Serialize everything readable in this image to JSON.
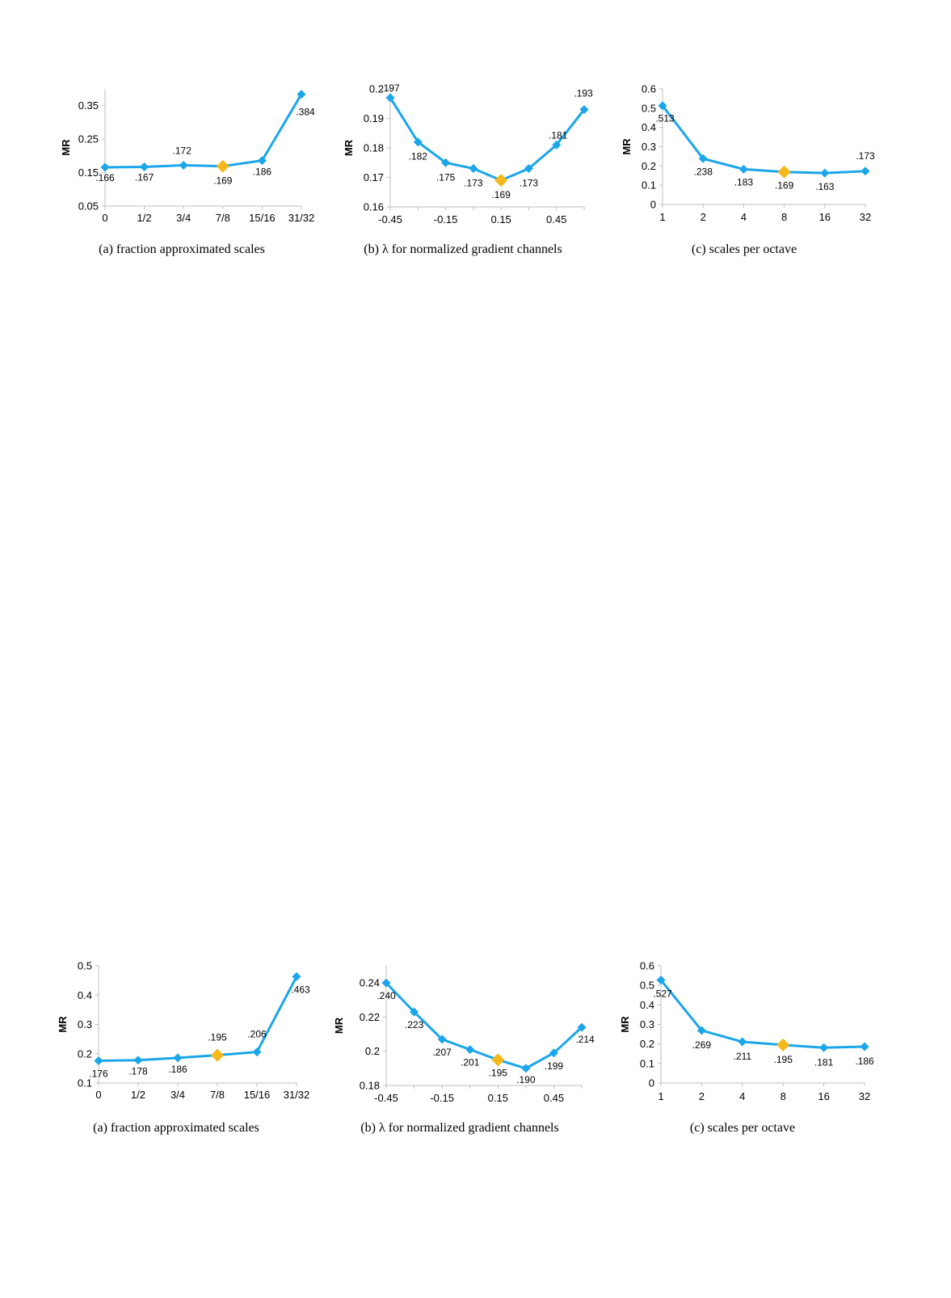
{
  "style": {
    "line_color": "#1aa6e8",
    "highlight_color": "#f6b81a"
  },
  "chart_data": [
    {
      "type": "line",
      "panel": "top-a",
      "categories": [
        "0",
        "1/2",
        "3/4",
        "7/8",
        "15/16",
        "31/32"
      ],
      "values": [
        0.166,
        0.167,
        0.172,
        0.169,
        0.186,
        0.384
      ],
      "data_labels": [
        ".166",
        ".167",
        ".172",
        ".169",
        ".186",
        ".384"
      ],
      "highlight_index": 3,
      "ylim": [
        0.05,
        0.4
      ],
      "yticks": [
        0.05,
        0.15,
        0.25,
        0.35
      ],
      "ytick_labels": [
        "0.05",
        "0.15",
        "0.25",
        "0.35"
      ],
      "ylabel": "MR",
      "caption": "(a) fraction approximated scales"
    },
    {
      "type": "line",
      "panel": "top-b",
      "x": [
        -0.45,
        -0.3,
        -0.15,
        0,
        0.15,
        0.3,
        0.45,
        0.6
      ],
      "values": [
        0.197,
        0.182,
        0.175,
        0.173,
        0.169,
        0.173,
        0.181,
        0.193
      ],
      "data_labels": [
        ".197",
        ".182",
        ".175",
        ".173",
        ".169",
        ".173",
        ".181",
        ".193"
      ],
      "highlight_index": 4,
      "xticks": [
        -0.45,
        -0.15,
        0.15,
        0.45
      ],
      "xtick_labels": [
        "-0.45",
        "-0.15",
        "0.15",
        "0.45"
      ],
      "xlim": [
        -0.45,
        0.6
      ],
      "ylim": [
        0.16,
        0.2
      ],
      "yticks": [
        0.16,
        0.17,
        0.18,
        0.19,
        0.2
      ],
      "ytick_labels": [
        "0.16",
        "0.17",
        "0.18",
        "0.19",
        "0.2"
      ],
      "ylabel": "MR",
      "caption": "(b) λ for normalized gradient channels"
    },
    {
      "type": "line",
      "panel": "top-c",
      "categories": [
        "1",
        "2",
        "4",
        "8",
        "16",
        "32"
      ],
      "values": [
        0.513,
        0.238,
        0.183,
        0.169,
        0.163,
        0.173
      ],
      "data_labels": [
        ".513",
        ".238",
        ".183",
        ".169",
        ".163",
        ".173"
      ],
      "highlight_index": 3,
      "ylim": [
        0,
        0.6
      ],
      "yticks": [
        0,
        0.1,
        0.2,
        0.3,
        0.4,
        0.5,
        0.6
      ],
      "ytick_labels": [
        "0",
        "0.1",
        "0.2",
        "0.3",
        "0.4",
        "0.5",
        "0.6"
      ],
      "ylabel": "MR",
      "caption": "(c) scales per octave"
    },
    {
      "type": "line",
      "panel": "bottom-a",
      "categories": [
        "0",
        "1/2",
        "3/4",
        "7/8",
        "15/16",
        "31/32"
      ],
      "values": [
        0.176,
        0.178,
        0.186,
        0.195,
        0.206,
        0.463
      ],
      "data_labels": [
        ".176",
        ".178",
        ".186",
        ".195",
        ".206",
        ".463"
      ],
      "highlight_index": 3,
      "ylim": [
        0.1,
        0.5
      ],
      "yticks": [
        0.1,
        0.2,
        0.3,
        0.4,
        0.5
      ],
      "ytick_labels": [
        "0.1",
        "0.2",
        "0.3",
        "0.4",
        "0.5"
      ],
      "ylabel": "MR",
      "caption": "(a) fraction approximated scales"
    },
    {
      "type": "line",
      "panel": "bottom-b",
      "x": [
        -0.45,
        -0.3,
        -0.15,
        0,
        0.15,
        0.3,
        0.45,
        0.6
      ],
      "values": [
        0.24,
        0.223,
        0.207,
        0.201,
        0.195,
        0.19,
        0.199,
        0.214
      ],
      "data_labels": [
        ".240",
        ".223",
        ".207",
        ".201",
        ".195",
        ".190",
        ".199",
        ".214"
      ],
      "highlight_index": 4,
      "xticks": [
        -0.45,
        -0.15,
        0.15,
        0.45
      ],
      "xtick_labels": [
        "-0.45",
        "-0.15",
        "0.15",
        "0.45"
      ],
      "xlim": [
        -0.45,
        0.6
      ],
      "ylim": [
        0.18,
        0.25
      ],
      "yticks": [
        0.18,
        0.2,
        0.22,
        0.24
      ],
      "ytick_labels": [
        "0.18",
        "0.2",
        "0.22",
        "0.24"
      ],
      "ylabel": "MR",
      "caption": "(b) λ for normalized gradient channels"
    },
    {
      "type": "line",
      "panel": "bottom-c",
      "categories": [
        "1",
        "2",
        "4",
        "8",
        "16",
        "32"
      ],
      "values": [
        0.527,
        0.269,
        0.211,
        0.195,
        0.181,
        0.186
      ],
      "data_labels": [
        ".527",
        ".269",
        ".211",
        ".195",
        ".181",
        ".186"
      ],
      "highlight_index": 3,
      "ylim": [
        0,
        0.6
      ],
      "yticks": [
        0,
        0.1,
        0.2,
        0.3,
        0.4,
        0.5,
        0.6
      ],
      "ytick_labels": [
        "0",
        "0.1",
        "0.2",
        "0.3",
        "0.4",
        "0.5",
        "0.6"
      ],
      "ylabel": "MR",
      "caption": "(c) scales per octave"
    }
  ]
}
